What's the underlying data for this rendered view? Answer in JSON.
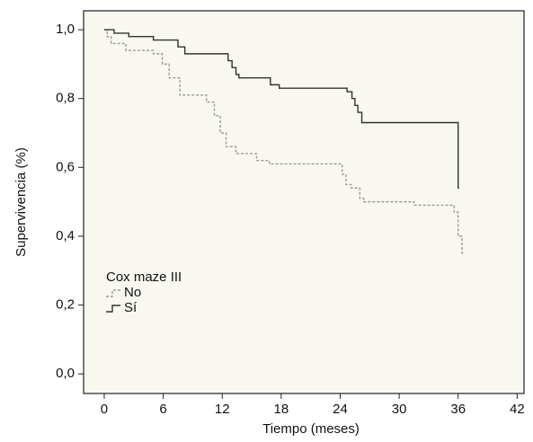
{
  "chart_data": {
    "type": "step",
    "x_label": "Tiempo (meses)",
    "y_label": "Supervivencia (%)",
    "xlim": [
      -2.1,
      42.7
    ],
    "ylim": [
      -0.057,
      1.055
    ],
    "xticks": [
      0,
      6,
      12,
      18,
      24,
      30,
      36,
      42
    ],
    "yticks": [
      {
        "value": 0,
        "label": "0,0"
      },
      {
        "value": 0.2,
        "label": "0,2"
      },
      {
        "value": 0.4,
        "label": "0,4"
      },
      {
        "value": 0.6,
        "label": "0,6"
      },
      {
        "value": 0.8,
        "label": "0,8"
      },
      {
        "value": 1,
        "label": "1,0"
      }
    ],
    "legend_title": "Cox maze III",
    "legend": "lower left",
    "series": [
      {
        "name": "No",
        "color": "#9a9a9a",
        "style": "dotted",
        "x": [
          0,
          0.3,
          0.7,
          2.2,
          5,
          5.9,
          6.6,
          7.7,
          10.4,
          11.2,
          11.8,
          12.4,
          13.4,
          15.5,
          16.8,
          24.2,
          24.6,
          25.1,
          26,
          26.4,
          31.5,
          35.6,
          36,
          36.4,
          36.5
        ],
        "values": [
          1.0,
          0.98,
          0.96,
          0.94,
          0.93,
          0.9,
          0.86,
          0.81,
          0.79,
          0.75,
          0.7,
          0.66,
          0.64,
          0.62,
          0.61,
          0.58,
          0.55,
          0.54,
          0.51,
          0.5,
          0.49,
          0.47,
          0.4,
          0.35,
          0.35
        ]
      },
      {
        "name": "Sí",
        "color": "#333333",
        "style": "solid",
        "x": [
          0,
          1,
          2.5,
          5,
          7.5,
          8.2,
          12.6,
          13,
          13.4,
          13.7,
          16.9,
          17.8,
          24.7,
          25.2,
          25.5,
          25.8,
          26.2,
          36,
          36.1
        ],
        "values": [
          1.0,
          0.99,
          0.98,
          0.97,
          0.95,
          0.93,
          0.91,
          0.89,
          0.87,
          0.86,
          0.84,
          0.83,
          0.82,
          0.8,
          0.78,
          0.76,
          0.73,
          0.54,
          0.54
        ]
      }
    ]
  }
}
